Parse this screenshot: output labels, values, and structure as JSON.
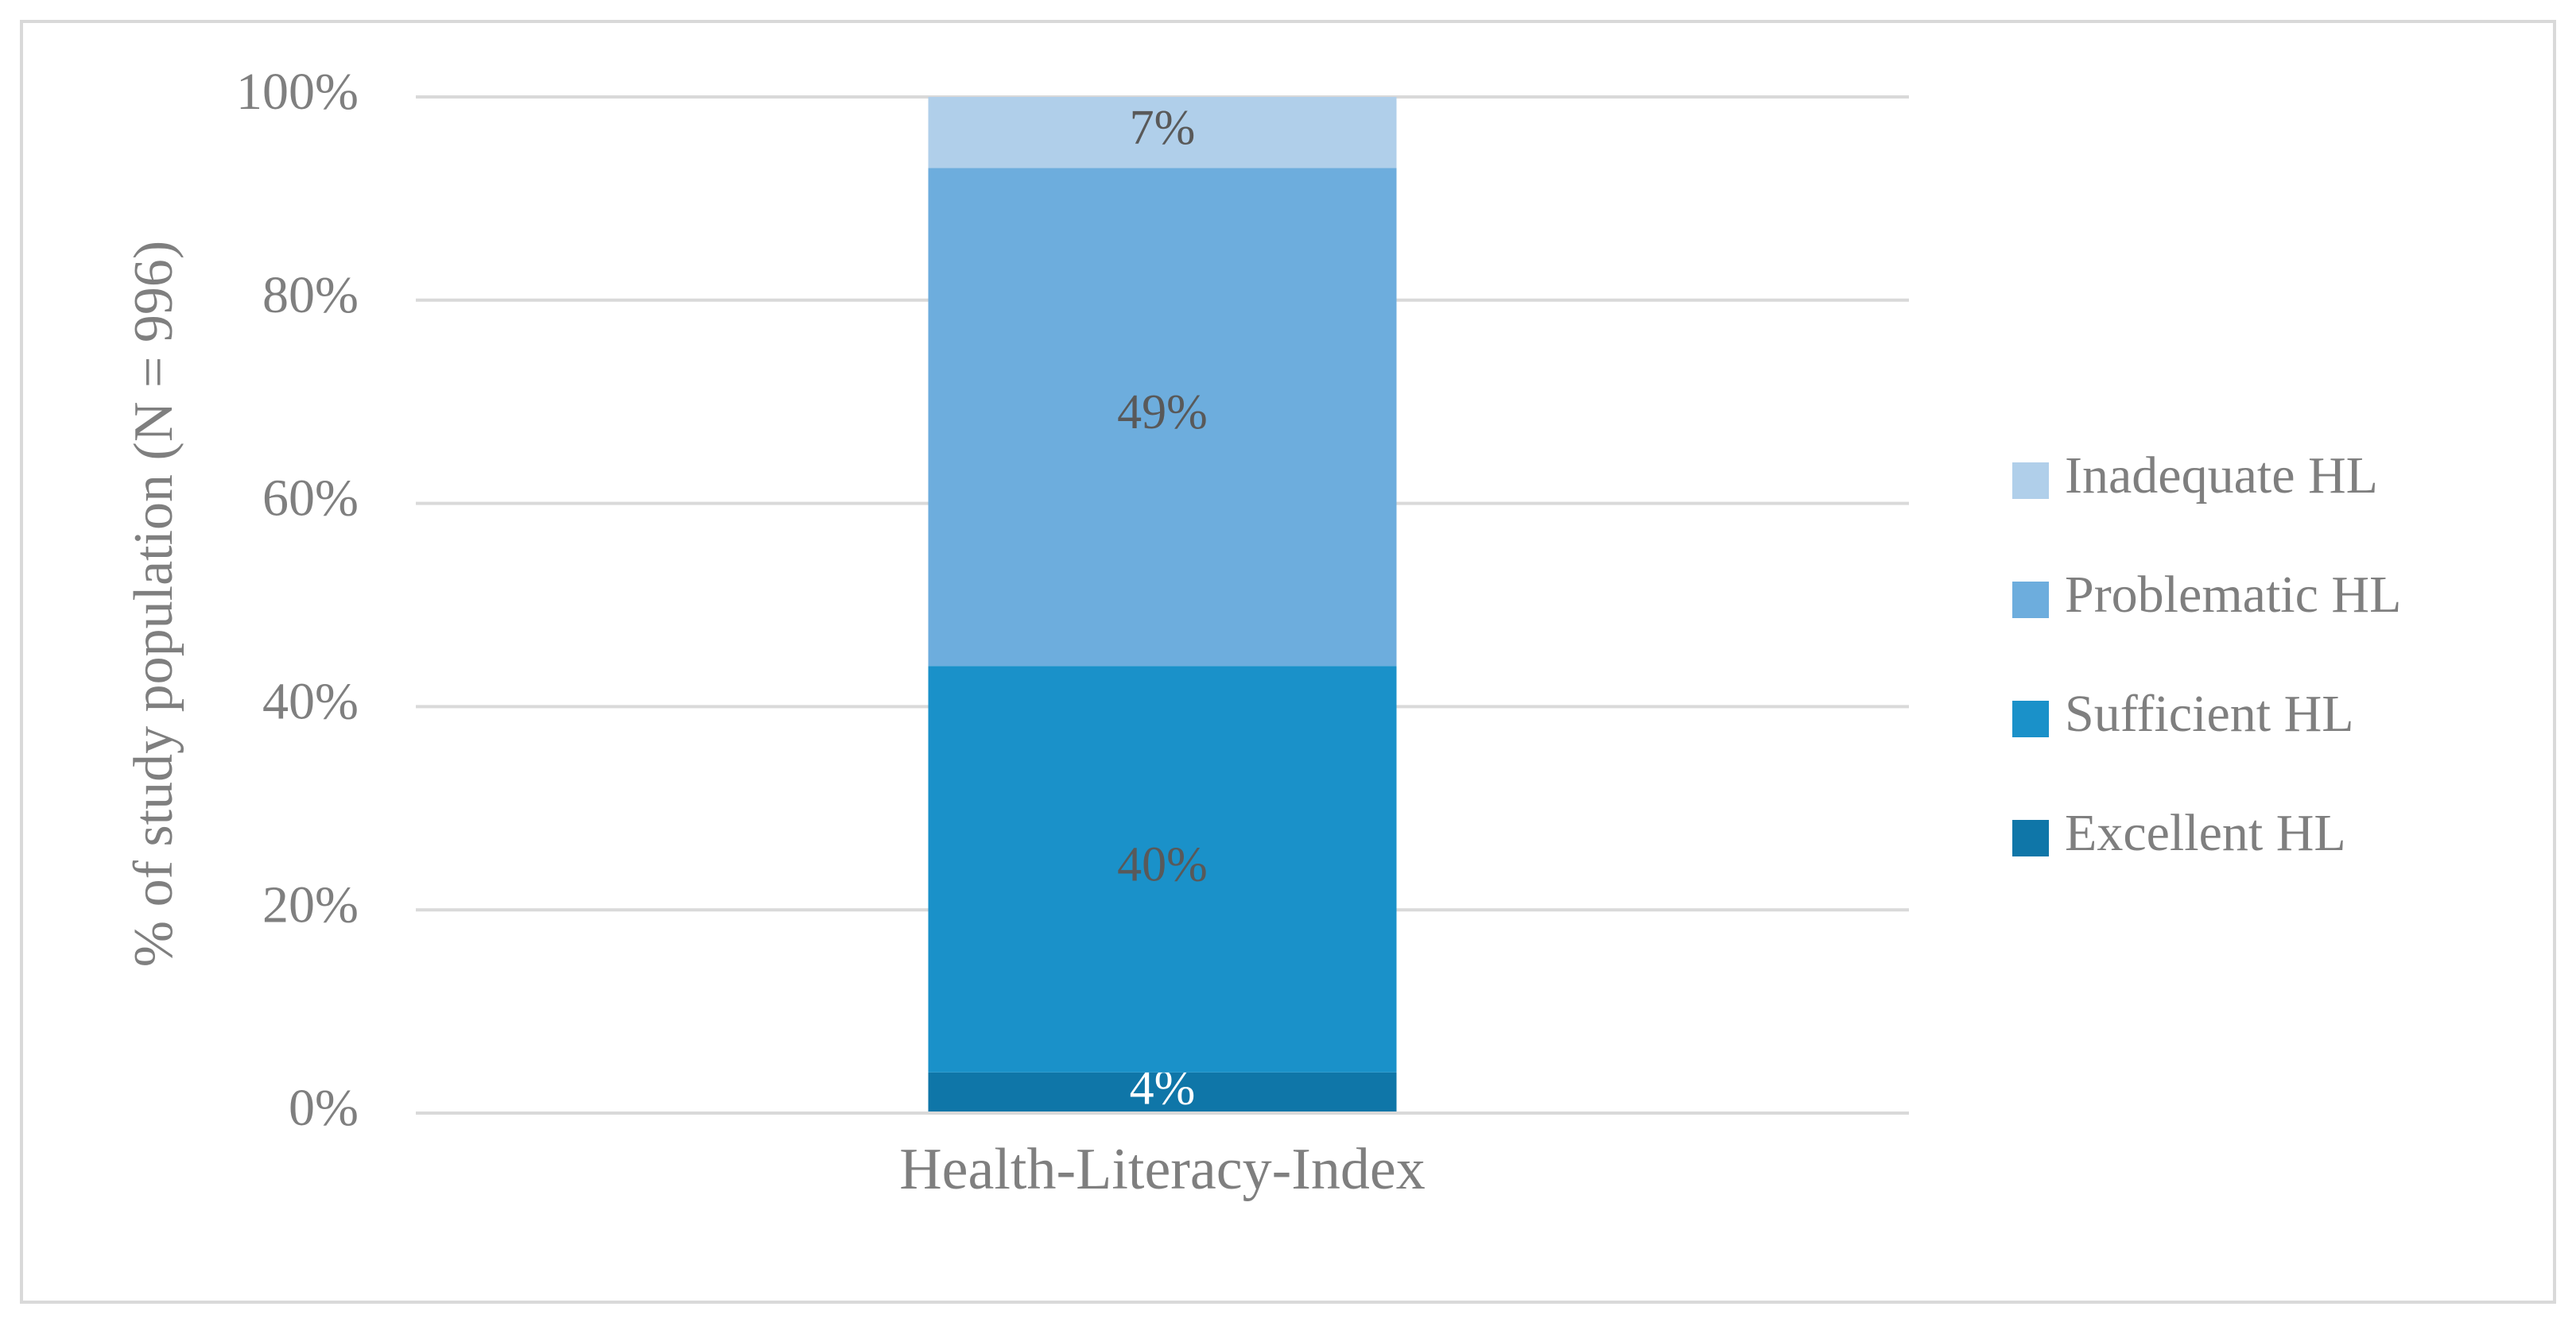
{
  "chart_data": {
    "type": "stacked-bar",
    "y_label": "% of study population (N = 996)",
    "categories": [
      "Health-Literacy-Index"
    ],
    "series": [
      {
        "name": "Excellent HL",
        "color": "#0f76a8",
        "values": [
          4
        ],
        "value_labels": [
          "4%"
        ]
      },
      {
        "name": "Sufficient HL",
        "color": "#1a91c9",
        "values": [
          40
        ],
        "value_labels": [
          "40%"
        ]
      },
      {
        "name": "Problematic HL",
        "color": "#6daddd",
        "values": [
          49
        ],
        "value_labels": [
          "49%"
        ]
      },
      {
        "name": "Inadequate HL",
        "color": "#b0cfea",
        "values": [
          7
        ],
        "value_labels": [
          "7%"
        ]
      }
    ],
    "ylim": [
      0,
      100
    ],
    "yticks": [
      {
        "value": 0,
        "label": "0%"
      },
      {
        "value": 20,
        "label": "20%"
      },
      {
        "value": 40,
        "label": "40%"
      },
      {
        "value": 60,
        "label": "60%"
      },
      {
        "value": 80,
        "label": "80%"
      },
      {
        "value": 100,
        "label": "100%"
      }
    ],
    "grid": true,
    "legend": "right"
  }
}
